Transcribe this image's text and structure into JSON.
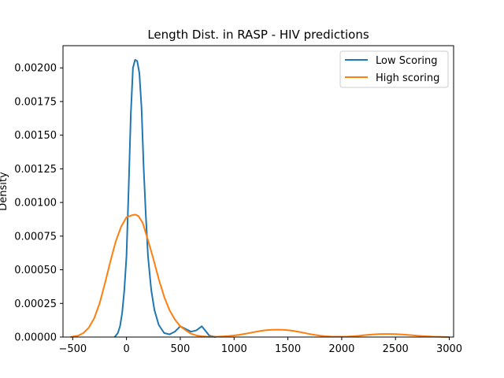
{
  "chart_data": {
    "type": "line",
    "title": "Length Dist. in RASP - HIV predictions",
    "xlabel": "",
    "ylabel": "Density",
    "xlim": [
      -590,
      3040
    ],
    "ylim": [
      0,
      0.002165
    ],
    "x_ticks": [
      -500,
      0,
      500,
      1000,
      1500,
      2000,
      2500,
      3000
    ],
    "y_ticks": [
      0.0,
      0.00025,
      0.0005,
      0.00075,
      0.001,
      0.00125,
      0.0015,
      0.00175,
      0.002
    ],
    "x_tick_labels": [
      "−500",
      "0",
      "500",
      "1000",
      "1500",
      "2000",
      "2500",
      "3000"
    ],
    "y_tick_labels": [
      "0.00000",
      "0.00025",
      "0.00050",
      "0.00075",
      "0.00100",
      "0.00125",
      "0.00150",
      "0.00175",
      "0.00200"
    ],
    "grid": false,
    "legend_position": "top-right",
    "series": [
      {
        "name": "Low Scoring",
        "color": "#1f77b4",
        "x": [
          -110,
          -80,
          -60,
          -40,
          -20,
          0,
          20,
          40,
          60,
          80,
          100,
          120,
          140,
          160,
          180,
          200,
          230,
          260,
          300,
          350,
          400,
          450,
          500,
          550,
          600,
          650,
          700,
          740,
          770,
          800,
          830
        ],
        "y": [
          0.0,
          3e-05,
          8e-05,
          0.00018,
          0.00035,
          0.0006,
          0.0011,
          0.00165,
          0.002,
          0.00206,
          0.00205,
          0.00196,
          0.0017,
          0.00125,
          0.0009,
          0.0006,
          0.00035,
          0.0002,
          9e-05,
          3e-05,
          2e-05,
          4e-05,
          8e-05,
          6e-05,
          4e-05,
          5e-05,
          8e-05,
          4e-05,
          1e-05,
          5e-06,
          0.0
        ]
      },
      {
        "name": "High scoring",
        "color": "#ff7f0e",
        "x": [
          -520,
          -450,
          -400,
          -350,
          -300,
          -250,
          -200,
          -150,
          -100,
          -50,
          0,
          50,
          80,
          110,
          150,
          200,
          250,
          300,
          350,
          400,
          450,
          500,
          550,
          600,
          650,
          700,
          750,
          800,
          850,
          900,
          950,
          1000,
          1050,
          1100,
          1150,
          1200,
          1250,
          1300,
          1350,
          1400,
          1450,
          1500,
          1550,
          1600,
          1650,
          1700,
          1750,
          1800,
          1850,
          1900,
          1950,
          2000,
          2050,
          2100,
          2150,
          2200,
          2250,
          2300,
          2350,
          2400,
          2450,
          2500,
          2550,
          2600,
          2650,
          2700,
          2750,
          2800,
          2850,
          2900,
          2950,
          3000
        ],
        "y": [
          0.0,
          1e-05,
          3e-05,
          7e-05,
          0.00014,
          0.00025,
          0.0004,
          0.00056,
          0.00071,
          0.00082,
          0.00089,
          0.000905,
          0.00091,
          0.0009,
          0.00085,
          0.00072,
          0.00058,
          0.00043,
          0.0003,
          0.0002,
          0.00013,
          8e-05,
          5e-05,
          2.5e-05,
          1.2e-05,
          6e-06,
          3e-06,
          2e-06,
          3e-06,
          5e-06,
          8e-06,
          1.2e-05,
          1.7e-05,
          2.4e-05,
          3.1e-05,
          3.9e-05,
          4.6e-05,
          5.1e-05,
          5.4e-05,
          5.5e-05,
          5.4e-05,
          5.1e-05,
          4.6e-05,
          3.9e-05,
          3.1e-05,
          2.3e-05,
          1.6e-05,
          1e-05,
          6e-06,
          4e-06,
          3e-06,
          3e-06,
          4e-06,
          6e-06,
          9e-06,
          1.3e-05,
          1.7e-05,
          2e-05,
          2.2e-05,
          2.3e-05,
          2.3e-05,
          2.2e-05,
          2e-05,
          1.7e-05,
          1.4e-05,
          1e-05,
          7e-06,
          5e-06,
          3e-06,
          2e-06,
          1e-06,
          0.0
        ]
      }
    ]
  }
}
